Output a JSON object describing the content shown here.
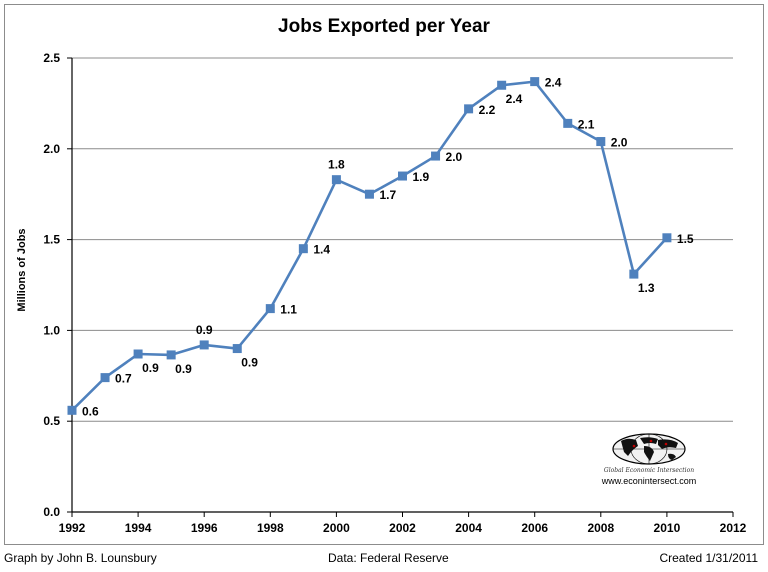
{
  "chart_data": {
    "type": "line",
    "title": "Jobs Exported per Year",
    "ylabel": "Millions of Jobs",
    "xlabel": "",
    "xlim": [
      1992,
      2012
    ],
    "ylim": [
      0.0,
      2.5
    ],
    "x_ticks": [
      1992,
      1994,
      1996,
      1998,
      2000,
      2002,
      2004,
      2006,
      2008,
      2010,
      2012
    ],
    "x_tick_labels": [
      "1992",
      "1994",
      "1996",
      "1998",
      "2000",
      "2002",
      "2004",
      "2006",
      "2008",
      "2010",
      "2012"
    ],
    "y_ticks": [
      0.0,
      0.5,
      1.0,
      1.5,
      2.0,
      2.5
    ],
    "y_tick_labels": [
      "0.0",
      "0.5",
      "1.0",
      "1.5",
      "2.0",
      "2.5"
    ],
    "grid": "horizontal",
    "series": [
      {
        "name": "Jobs Exported",
        "color": "#4f81bd",
        "x": [
          1992,
          1993,
          1994,
          1995,
          1996,
          1997,
          1998,
          1999,
          2000,
          2001,
          2002,
          2003,
          2004,
          2005,
          2006,
          2007,
          2008,
          2009,
          2010
        ],
        "values": [
          0.56,
          0.74,
          0.87,
          0.865,
          0.92,
          0.9,
          1.12,
          1.45,
          1.83,
          1.75,
          1.85,
          1.96,
          2.22,
          2.35,
          2.37,
          2.14,
          2.04,
          1.31,
          1.51
        ],
        "labels": [
          "0.6",
          "0.7",
          "0.9",
          "0.9",
          "0.9",
          "0.9",
          "1.1",
          "1.4",
          "1.8",
          "1.7",
          "1.9",
          "2.0",
          "2.2",
          "2.4",
          "2.4",
          "2.1",
          "2.0",
          "1.3",
          "1.5"
        ],
        "label_pos": [
          "right",
          "right",
          "below",
          "below",
          "above",
          "below",
          "right",
          "right",
          "above",
          "right",
          "right",
          "right",
          "right",
          "below",
          "right",
          "right",
          "right",
          "below",
          "right"
        ]
      }
    ]
  },
  "footer": {
    "credit": "Graph by John B. Lounsbury",
    "source": "Data:  Federal Reserve",
    "created": "Created 1/31/2011"
  },
  "logo": {
    "org": "Global Economic Intersection",
    "url": "www.econintersect.com"
  }
}
